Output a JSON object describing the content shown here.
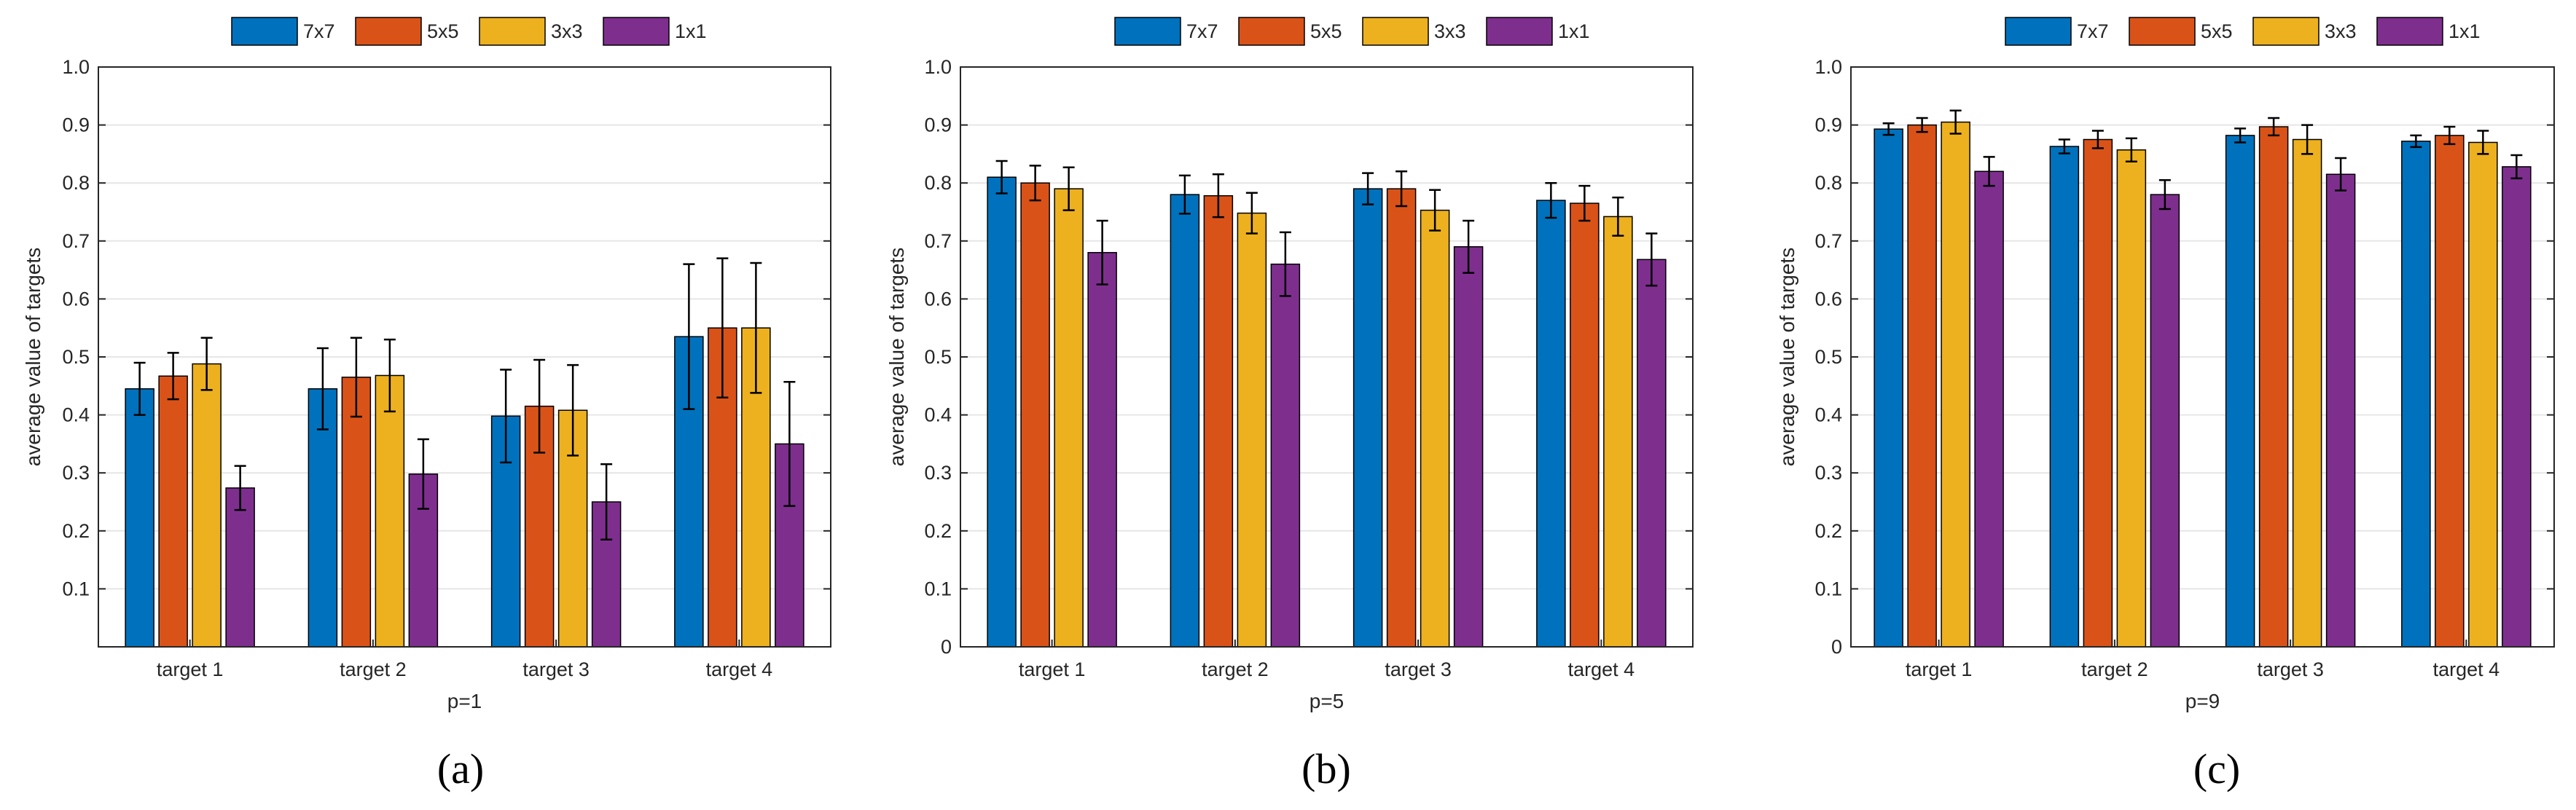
{
  "colors": {
    "series": [
      "#0072BD",
      "#D95319",
      "#EDB120",
      "#7E2F8E"
    ],
    "grid": "#e6e6e6",
    "axis": "#262626",
    "text": "#262626"
  },
  "legend_position": "top",
  "chart_data": [
    {
      "type": "bar",
      "panel_label": "(a)",
      "title": "",
      "xlabel": "p=1",
      "ylabel": "average value of targets",
      "categories": [
        "target 1",
        "target 2",
        "target 3",
        "target 4"
      ],
      "ylim": [
        0,
        1.0
      ],
      "yticks": [
        0.1,
        0.2,
        0.3,
        0.4,
        0.5,
        0.6,
        0.7,
        0.8,
        0.9,
        1.0
      ],
      "ytick_labels": [
        "0.1",
        "0.2",
        "0.3",
        "0.4",
        "0.5",
        "0.6",
        "0.7",
        "0.8",
        "0.9",
        "1.0"
      ],
      "grid": true,
      "legend": [
        "7x7",
        "5x5",
        "3x3",
        "1x1"
      ],
      "series": [
        {
          "name": "7x7",
          "values": [
            0.445,
            0.445,
            0.398,
            0.535
          ],
          "errors": [
            0.045,
            0.07,
            0.08,
            0.125
          ]
        },
        {
          "name": "5x5",
          "values": [
            0.467,
            0.465,
            0.415,
            0.55
          ],
          "errors": [
            0.04,
            0.068,
            0.08,
            0.12
          ]
        },
        {
          "name": "3x3",
          "values": [
            0.488,
            0.468,
            0.408,
            0.55
          ],
          "errors": [
            0.045,
            0.062,
            0.078,
            0.112
          ]
        },
        {
          "name": "1x1",
          "values": [
            0.274,
            0.298,
            0.25,
            0.35
          ],
          "errors": [
            0.038,
            0.06,
            0.065,
            0.107
          ]
        }
      ]
    },
    {
      "type": "bar",
      "panel_label": "(b)",
      "title": "",
      "xlabel": "p=5",
      "ylabel": "average value of targets",
      "categories": [
        "target 1",
        "target 2",
        "target 3",
        "target 4"
      ],
      "ylim": [
        0,
        1.0
      ],
      "yticks": [
        0,
        0.1,
        0.2,
        0.3,
        0.4,
        0.5,
        0.6,
        0.7,
        0.8,
        0.9,
        1.0
      ],
      "ytick_labels": [
        "0",
        "0.1",
        "0.2",
        "0.3",
        "0.4",
        "0.5",
        "0.6",
        "0.7",
        "0.8",
        "0.9",
        "1.0"
      ],
      "grid": true,
      "legend": [
        "7x7",
        "5x5",
        "3x3",
        "1x1"
      ],
      "series": [
        {
          "name": "7x7",
          "values": [
            0.81,
            0.78,
            0.79,
            0.77
          ],
          "errors": [
            0.028,
            0.033,
            0.027,
            0.03
          ]
        },
        {
          "name": "5x5",
          "values": [
            0.8,
            0.778,
            0.79,
            0.765
          ],
          "errors": [
            0.03,
            0.037,
            0.03,
            0.03
          ]
        },
        {
          "name": "3x3",
          "values": [
            0.79,
            0.748,
            0.753,
            0.742
          ],
          "errors": [
            0.037,
            0.035,
            0.035,
            0.033
          ]
        },
        {
          "name": "1x1",
          "values": [
            0.68,
            0.66,
            0.69,
            0.668
          ],
          "errors": [
            0.055,
            0.055,
            0.045,
            0.045
          ]
        }
      ]
    },
    {
      "type": "bar",
      "panel_label": "(c)",
      "title": "",
      "xlabel": "p=9",
      "ylabel": "average value of targets",
      "categories": [
        "target 1",
        "target 2",
        "target 3",
        "target 4"
      ],
      "ylim": [
        0,
        1.0
      ],
      "yticks": [
        0,
        0.1,
        0.2,
        0.3,
        0.4,
        0.5,
        0.6,
        0.7,
        0.8,
        0.9,
        1.0
      ],
      "ytick_labels": [
        "0",
        "0.1",
        "0.2",
        "0.3",
        "0.4",
        "0.5",
        "0.6",
        "0.7",
        "0.8",
        "0.9",
        "1.0"
      ],
      "grid": true,
      "legend": [
        "7x7",
        "5x5",
        "3x3",
        "1x1"
      ],
      "series": [
        {
          "name": "7x7",
          "values": [
            0.893,
            0.863,
            0.882,
            0.872
          ],
          "errors": [
            0.01,
            0.012,
            0.012,
            0.01
          ]
        },
        {
          "name": "5x5",
          "values": [
            0.9,
            0.875,
            0.897,
            0.882
          ],
          "errors": [
            0.012,
            0.015,
            0.015,
            0.015
          ]
        },
        {
          "name": "3x3",
          "values": [
            0.905,
            0.857,
            0.875,
            0.87
          ],
          "errors": [
            0.02,
            0.02,
            0.025,
            0.02
          ]
        },
        {
          "name": "1x1",
          "values": [
            0.82,
            0.78,
            0.815,
            0.828
          ],
          "errors": [
            0.025,
            0.025,
            0.028,
            0.02
          ]
        }
      ]
    }
  ]
}
